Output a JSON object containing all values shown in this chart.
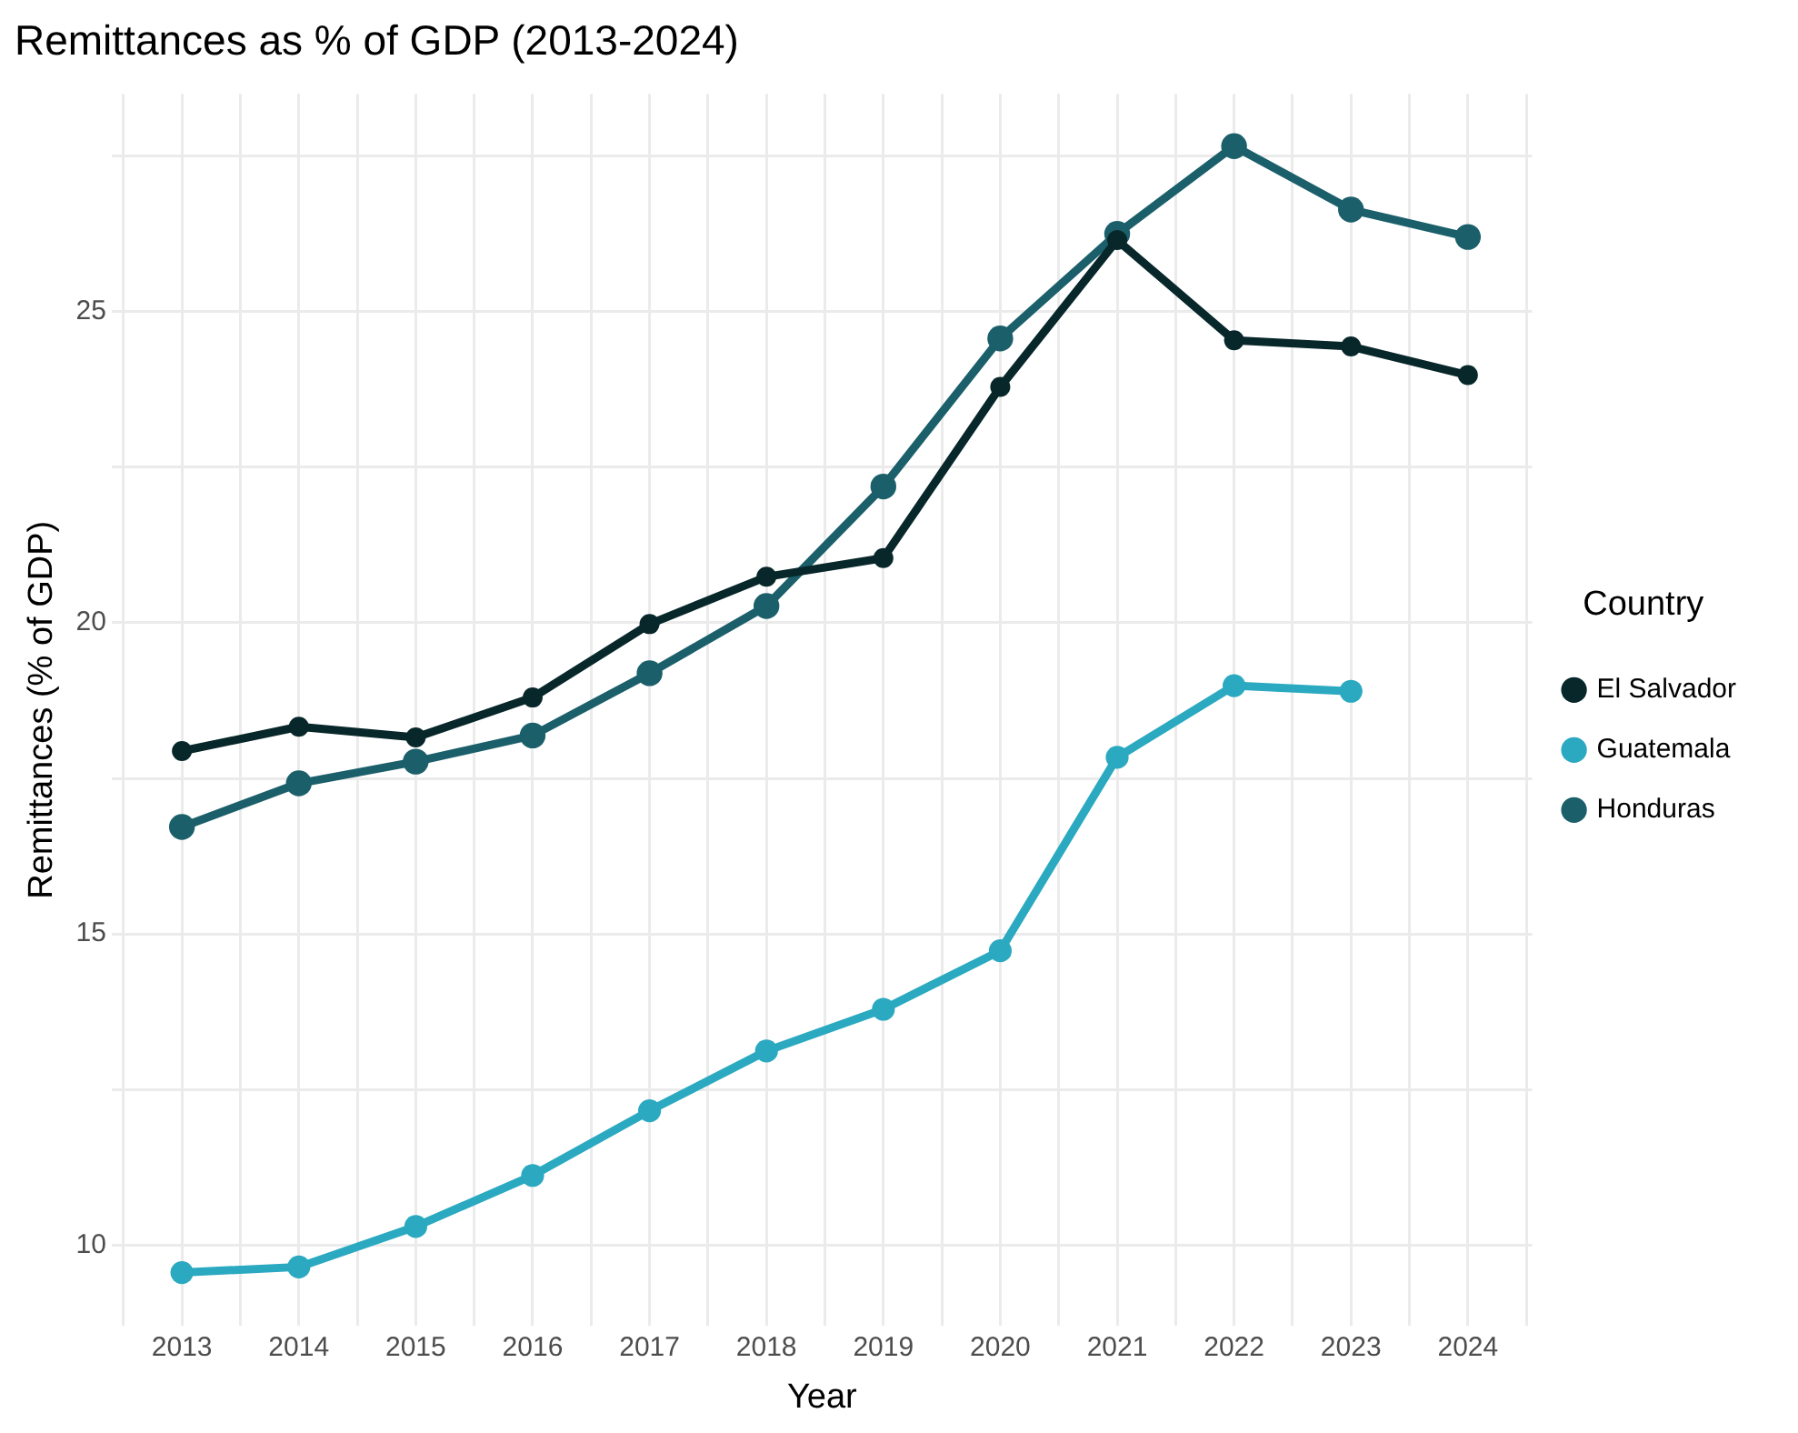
{
  "chart_data": {
    "type": "line",
    "title": "Remittances as % of GDP (2013-2024)",
    "xlabel": "Year",
    "ylabel": "Remittances (% of GDP)",
    "legend_title": "Country",
    "x": [
      2013,
      2014,
      2015,
      2016,
      2017,
      2018,
      2019,
      2020,
      2021,
      2022,
      2023,
      2024
    ],
    "series": [
      {
        "name": "El Salvador",
        "color": "#08272a",
        "values": [
          17.94,
          18.33,
          18.16,
          18.8,
          19.98,
          20.74,
          21.04,
          23.79,
          26.15,
          24.54,
          24.44,
          23.98
        ]
      },
      {
        "name": "Guatemala",
        "color": "#2aa9c0",
        "values": [
          9.56,
          9.65,
          10.3,
          11.12,
          12.16,
          13.12,
          13.79,
          14.73,
          17.84,
          18.99,
          18.9,
          null
        ]
      },
      {
        "name": "Honduras",
        "color": "#1b5f6b",
        "values": [
          16.72,
          17.42,
          17.77,
          18.19,
          19.19,
          20.27,
          22.19,
          24.57,
          26.25,
          27.66,
          26.64,
          26.2
        ]
      }
    ],
    "xlim": [
      2012.4,
      2024.55
    ],
    "ylim": [
      8.7,
      28.5
    ],
    "xticks": [
      {
        "value": 2012.5,
        "label": null
      },
      2013,
      {
        "value": 2013.5,
        "label": null
      },
      2014,
      {
        "value": 2014.5,
        "label": null
      },
      2015,
      {
        "value": 2015.5,
        "label": null
      },
      2016,
      {
        "value": 2016.5,
        "label": null
      },
      2017,
      {
        "value": 2017.5,
        "label": null
      },
      2018,
      {
        "value": 2018.5,
        "label": null
      },
      2019,
      {
        "value": 2019.5,
        "label": null
      },
      2020,
      {
        "value": 2020.5,
        "label": null
      },
      2021,
      {
        "value": 2021.5,
        "label": null
      },
      2022,
      {
        "value": 2022.5,
        "label": null
      },
      2023,
      {
        "value": 2023.5,
        "label": null
      },
      2024,
      {
        "value": 2024.5,
        "label": null
      }
    ],
    "yticks": [
      10,
      {
        "value": 12.5,
        "label": null
      },
      15,
      {
        "value": 17.5,
        "label": null
      },
      20,
      {
        "value": 22.5,
        "label": null
      },
      25,
      {
        "value": 27.5,
        "label": null
      }
    ],
    "grid": true,
    "legend": "right",
    "marker": "circle",
    "line_style": "solid"
  }
}
